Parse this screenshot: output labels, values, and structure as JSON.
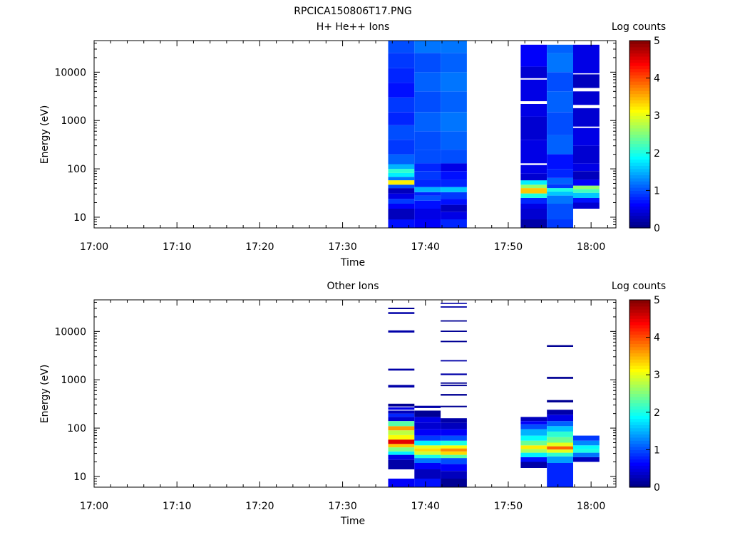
{
  "figure": {
    "title": "RPCICA150806T17.PNG"
  },
  "chart_data": [
    {
      "type": "heatmap",
      "title": "H+ He++ Ions",
      "xlabel": "Time",
      "ylabel": "Energy (eV)",
      "yscale": "log",
      "xlim": [
        "17:00",
        "18:03"
      ],
      "ylim": [
        6,
        45000
      ],
      "xticks": [
        "17:00",
        "17:10",
        "17:20",
        "17:30",
        "17:40",
        "17:50",
        "18:00"
      ],
      "yticks": [
        "10",
        "100",
        "1000",
        "10000"
      ],
      "colorbar": {
        "label": "Log counts",
        "range": [
          0,
          5
        ],
        "ticks": [
          "0",
          "1",
          "2",
          "3",
          "4",
          "5"
        ]
      },
      "grid": false,
      "blocks": [
        {
          "t_start": "17:35:30",
          "t_end": "17:38:40",
          "levels": [
            [
              6,
              9,
              0.7
            ],
            [
              9,
              15,
              0.3
            ],
            [
              15,
              19,
              0.6
            ],
            [
              19,
              24,
              0.9
            ],
            [
              24,
              31,
              0.5
            ],
            [
              31,
              40,
              0.3
            ],
            [
              40,
              47,
              1.0
            ],
            [
              47,
              58,
              3.2
            ],
            [
              58,
              68,
              1.2
            ],
            [
              68,
              82,
              1.8
            ],
            [
              82,
              100,
              2.1
            ],
            [
              100,
              125,
              1.5
            ],
            [
              125,
              200,
              1.1
            ],
            [
              200,
              400,
              0.9
            ],
            [
              400,
              800,
              1.0
            ],
            [
              800,
              1500,
              0.8
            ],
            [
              1500,
              3000,
              0.9
            ],
            [
              3000,
              6000,
              0.7
            ],
            [
              6000,
              12000,
              0.8
            ],
            [
              12000,
              25000,
              0.9
            ],
            [
              25000,
              45000,
              1.0
            ]
          ]
        },
        {
          "t_start": "17:38:40",
          "t_end": "17:41:50",
          "levels": [
            [
              6,
              9,
              0.6
            ],
            [
              9,
              15,
              0.5
            ],
            [
              15,
              22,
              0.7
            ],
            [
              22,
              28,
              1.0
            ],
            [
              28,
              33,
              0.8
            ],
            [
              33,
              42,
              1.5
            ],
            [
              42,
              60,
              0.8
            ],
            [
              60,
              90,
              0.9
            ],
            [
              90,
              130,
              0.8
            ],
            [
              130,
              250,
              1.0
            ],
            [
              250,
              600,
              1.0
            ],
            [
              600,
              1500,
              1.1
            ],
            [
              1500,
              4000,
              1.0
            ],
            [
              4000,
              10000,
              1.1
            ],
            [
              10000,
              25000,
              1.0
            ],
            [
              25000,
              45000,
              1.2
            ]
          ]
        },
        {
          "t_start": "17:41:50",
          "t_end": "17:45:00",
          "levels": [
            [
              6,
              9,
              0.8
            ],
            [
              9,
              13,
              0.5
            ],
            [
              13,
              18,
              0.3
            ],
            [
              18,
              24,
              0.7
            ],
            [
              24,
              33,
              0.9
            ],
            [
              33,
              42,
              1.6
            ],
            [
              42,
              60,
              0.8
            ],
            [
              60,
              90,
              0.7
            ],
            [
              90,
              130,
              0.5
            ],
            [
              130,
              250,
              1.0
            ],
            [
              250,
              600,
              1.1
            ],
            [
              600,
              1500,
              1.2
            ],
            [
              1500,
              4000,
              1.1
            ],
            [
              4000,
              10000,
              1.2
            ],
            [
              10000,
              25000,
              1.1
            ],
            [
              25000,
              45000,
              1.2
            ]
          ]
        },
        {
          "t_start": "17:51:30",
          "t_end": "17:54:40",
          "levels": [
            [
              6,
              9,
              0.2
            ],
            [
              9,
              15,
              0.4
            ],
            [
              15,
              19,
              0.5
            ],
            [
              19,
              25,
              0.8
            ],
            [
              25,
              31,
              2.0
            ],
            [
              31,
              40,
              3.4
            ],
            [
              40,
              47,
              2.6
            ],
            [
              47,
              58,
              1.8
            ],
            [
              58,
              80,
              0.4
            ],
            [
              80,
              120,
              0.5
            ],
            [
              130,
              400,
              0.5
            ],
            [
              400,
              1200,
              0.4
            ],
            [
              1200,
              2200,
              0.5
            ],
            [
              2500,
              7000,
              0.5
            ],
            [
              7500,
              13000,
              0.4
            ],
            [
              13000,
              37000,
              0.6
            ]
          ]
        },
        {
          "t_start": "17:54:40",
          "t_end": "17:57:50",
          "levels": [
            [
              6,
              9,
              0.9
            ],
            [
              9,
              19,
              1.0
            ],
            [
              19,
              28,
              1.2
            ],
            [
              28,
              34,
              1.6
            ],
            [
              34,
              40,
              2.0
            ],
            [
              40,
              48,
              0.9
            ],
            [
              48,
              65,
              1.1
            ],
            [
              65,
              100,
              0.8
            ],
            [
              100,
              200,
              0.7
            ],
            [
              200,
              500,
              1.1
            ],
            [
              500,
              1500,
              1.0
            ],
            [
              1500,
              4000,
              1.1
            ],
            [
              4000,
              10000,
              1.0
            ],
            [
              10000,
              25000,
              1.2
            ],
            [
              25000,
              37000,
              1.1
            ]
          ]
        },
        {
          "t_start": "17:57:50",
          "t_end": "18:01:00",
          "levels": [
            [
              15,
              20,
              0.4
            ],
            [
              20,
              25,
              0.7
            ],
            [
              25,
              32,
              1.6
            ],
            [
              32,
              38,
              2.2
            ],
            [
              38,
              45,
              2.6
            ],
            [
              45,
              60,
              0.6
            ],
            [
              60,
              90,
              0.3
            ],
            [
              90,
              130,
              0.5
            ],
            [
              130,
              300,
              0.4
            ],
            [
              300,
              700,
              0.5
            ],
            [
              750,
              1800,
              0.4
            ],
            [
              2100,
              4000,
              0.4
            ],
            [
              4700,
              9000,
              0.3
            ],
            [
              9500,
              37000,
              0.5
            ]
          ]
        }
      ]
    },
    {
      "type": "heatmap",
      "title": "Other Ions",
      "xlabel": "Time",
      "ylabel": "Energy (eV)",
      "yscale": "log",
      "xlim": [
        "17:00",
        "18:03"
      ],
      "ylim": [
        6,
        45000
      ],
      "xticks": [
        "17:00",
        "17:10",
        "17:20",
        "17:30",
        "17:40",
        "17:50",
        "18:00"
      ],
      "yticks": [
        "10",
        "100",
        "1000",
        "10000"
      ],
      "colorbar": {
        "label": "Log counts",
        "range": [
          0,
          5
        ],
        "ticks": [
          "0",
          "1",
          "2",
          "3",
          "4",
          "5"
        ]
      },
      "grid": false,
      "blocks": [
        {
          "t_start": "17:35:30",
          "t_end": "17:38:40",
          "levels": [
            [
              6,
              9,
              0.6
            ],
            [
              14,
              22,
              0.2
            ],
            [
              22,
              28,
              0.5
            ],
            [
              28,
              33,
              1.8
            ],
            [
              33,
              40,
              2.5
            ],
            [
              40,
              47,
              3.4
            ],
            [
              47,
              58,
              4.5
            ],
            [
              58,
              72,
              3.1
            ],
            [
              72,
              90,
              2.8
            ],
            [
              90,
              110,
              3.6
            ],
            [
              110,
              140,
              2.3
            ],
            [
              140,
              170,
              0.4
            ],
            [
              170,
              200,
              0.8
            ],
            [
              200,
              230,
              0.3
            ],
            [
              240,
              270,
              0.5
            ],
            [
              280,
              320,
              0.1
            ],
            [
              690,
              780,
              0.2
            ],
            [
              1550,
              1700,
              0.2
            ],
            [
              9500,
              10500,
              0.2
            ],
            [
              23000,
              25000,
              0.2
            ],
            [
              29000,
              31000,
              0.1
            ]
          ]
        },
        {
          "t_start": "17:38:40",
          "t_end": "17:41:50",
          "levels": [
            [
              6,
              9,
              0.7
            ],
            [
              9,
              14,
              0.3
            ],
            [
              14,
              19,
              0.6
            ],
            [
              19,
              24,
              1.2
            ],
            [
              24,
              28,
              2.0
            ],
            [
              28,
              33,
              2.9
            ],
            [
              33,
              38,
              3.3
            ],
            [
              38,
              44,
              3.0
            ],
            [
              44,
              55,
              1.8
            ],
            [
              55,
              70,
              0.9
            ],
            [
              70,
              95,
              0.6
            ],
            [
              95,
              130,
              0.4
            ],
            [
              130,
              170,
              0.5
            ],
            [
              170,
              230,
              0.1
            ],
            [
              260,
              290,
              0.2
            ]
          ]
        },
        {
          "t_start": "17:41:50",
          "t_end": "17:45:00",
          "levels": [
            [
              6,
              9,
              0.1
            ],
            [
              9,
              13,
              0.3
            ],
            [
              13,
              18,
              0.6
            ],
            [
              18,
              24,
              1.0
            ],
            [
              24,
              28,
              2.3
            ],
            [
              28,
              33,
              3.3
            ],
            [
              33,
              38,
              3.7
            ],
            [
              38,
              44,
              3.1
            ],
            [
              44,
              55,
              2.0
            ],
            [
              55,
              70,
              1.0
            ],
            [
              70,
              95,
              0.6
            ],
            [
              95,
              130,
              0.3
            ],
            [
              130,
              160,
              0.2
            ],
            [
              270,
              290,
              0.1
            ],
            [
              470,
              510,
              0.1
            ],
            [
              740,
              790,
              0.1
            ],
            [
              830,
              880,
              0.1
            ],
            [
              1250,
              1350,
              0.2
            ],
            [
              2400,
              2550,
              0.2
            ],
            [
              6000,
              6400,
              0.1
            ],
            [
              9800,
              10400,
              0.1
            ],
            [
              16000,
              17000,
              0.1
            ],
            [
              31000,
              33000,
              0.2
            ],
            [
              37000,
              39000,
              0.2
            ]
          ]
        },
        {
          "t_start": "17:51:30",
          "t_end": "17:54:40",
          "levels": [
            [
              15,
              20,
              0.2
            ],
            [
              20,
              25,
              0.7
            ],
            [
              25,
              31,
              1.8
            ],
            [
              31,
              37,
              2.7
            ],
            [
              37,
              44,
              3.2
            ],
            [
              44,
              55,
              2.4
            ],
            [
              55,
              70,
              1.9
            ],
            [
              70,
              95,
              1.5
            ],
            [
              95,
              120,
              1.0
            ],
            [
              120,
              140,
              0.6
            ],
            [
              140,
              170,
              0.3
            ]
          ]
        },
        {
          "t_start": "17:54:40",
          "t_end": "17:57:50",
          "levels": [
            [
              6,
              19,
              0.8
            ],
            [
              19,
              26,
              1.4
            ],
            [
              26,
              31,
              2.1
            ],
            [
              31,
              36,
              3.0
            ],
            [
              36,
              42,
              3.9
            ],
            [
              42,
              50,
              3.0
            ],
            [
              50,
              65,
              2.4
            ],
            [
              65,
              85,
              2.1
            ],
            [
              85,
              110,
              1.6
            ],
            [
              110,
              140,
              1.1
            ],
            [
              140,
              190,
              0.5
            ],
            [
              190,
              240,
              0.2
            ],
            [
              340,
              380,
              0.1
            ],
            [
              1050,
              1150,
              0.1
            ],
            [
              4800,
              5200,
              0.1
            ]
          ]
        },
        {
          "t_start": "17:57:50",
          "t_end": "18:01:00",
          "levels": [
            [
              20,
              25,
              0.3
            ],
            [
              25,
              31,
              1.2
            ],
            [
              31,
              37,
              2.0
            ],
            [
              37,
              44,
              1.9
            ],
            [
              44,
              55,
              1.3
            ],
            [
              55,
              70,
              0.9
            ]
          ]
        }
      ]
    }
  ]
}
